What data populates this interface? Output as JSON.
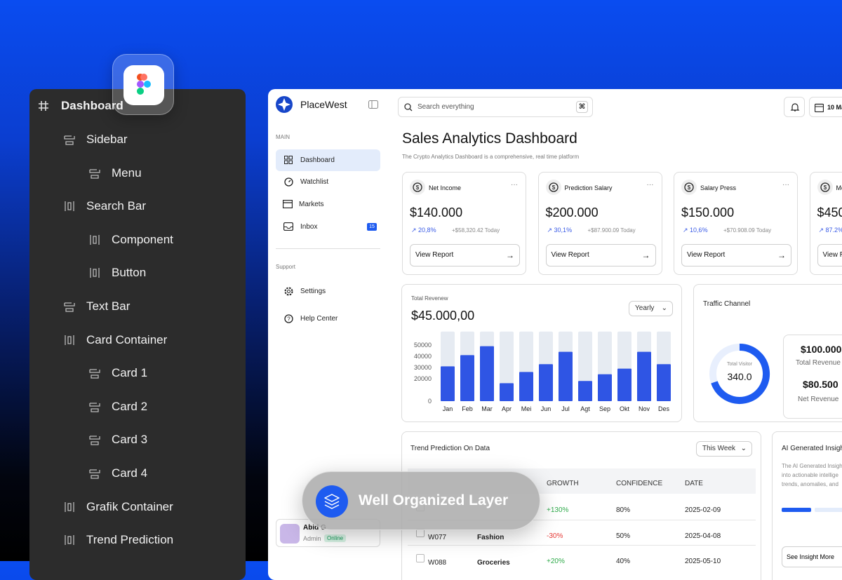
{
  "layers": {
    "root": "Dashboard",
    "items": [
      "Sidebar",
      "Menu",
      "Search Bar",
      "Component",
      "Button",
      "Text Bar",
      "Card Container",
      "Card 1",
      "Card 2",
      "Card 3",
      "Card 4",
      "Grafik Container",
      "Trend Prediction"
    ]
  },
  "badge": "Well Organized Layer",
  "app": {
    "brand": "PlaceWest",
    "search_placeholder": "Search everything",
    "date": "10 Ma",
    "main_section": "MAIN",
    "nav": [
      "Dashboard",
      "Watchlist",
      "Markets",
      "Inbox"
    ],
    "inbox_count": "15",
    "support_section": "Support",
    "support_nav": [
      "Settings",
      "Help Center"
    ],
    "user": {
      "name": "Abid G",
      "role": "Admin",
      "status": "Online"
    }
  },
  "header": {
    "title": "Sales Analytics Dashboard",
    "subtitle": "The Crypto Analytics Dashboard is a comprehensive, real time platform"
  },
  "cards": [
    {
      "label": "Net Income",
      "value": "$140.000",
      "change": "20,8%",
      "note": "+$58,320.42 Today",
      "button": "View Report"
    },
    {
      "label": "Prediction Salary",
      "value": "$200.000",
      "change": "30,1%",
      "note": "+$87.900.09 Today",
      "button": "View Report"
    },
    {
      "label": "Salary Press",
      "value": "$150.000",
      "change": "10,6%",
      "note": "+$70.908.09 Today",
      "button": "View Report"
    },
    {
      "label": "Mo",
      "value": "$450",
      "change": "87.2%",
      "button": "View R"
    }
  ],
  "chart_data": {
    "type": "bar",
    "title": "Total Revenew",
    "subtitle": "$45.000,00",
    "filter": "Yearly",
    "categories": [
      "Jan",
      "Feb",
      "Mar",
      "Apr",
      "Mei",
      "Jun",
      "Jul",
      "Agt",
      "Sep",
      "Okt",
      "Nov",
      "Des"
    ],
    "values": [
      31000,
      41000,
      49000,
      16000,
      26000,
      33000,
      44000,
      18000,
      24000,
      29000,
      44000,
      33000
    ],
    "color": "#2f55e4",
    "ylim": [
      0,
      62000
    ],
    "yticks": [
      0,
      20000,
      30000,
      40000,
      50000
    ],
    "grid": false
  },
  "traffic": {
    "title": "Traffic Channel",
    "center_label": "Total Visitor",
    "center_value": "340.0",
    "stats": [
      {
        "value": "$100.000",
        "label": "Total Revenue"
      },
      {
        "value": "$80.500",
        "label": "Net Revenue"
      }
    ]
  },
  "table": {
    "title": "Trend Prediction On Data",
    "filter": "This Week",
    "headers": [
      "GROWTH",
      "CONFIDENCE",
      "DATE"
    ],
    "rows": [
      {
        "growth": "+130%",
        "confidence": "80%",
        "date": "2025-02-09"
      },
      {
        "id": "W077",
        "category": "Fashion",
        "growth": "-30%",
        "confidence": "50%",
        "date": "2025-04-08"
      },
      {
        "id": "W088",
        "category": "Groceries",
        "growth": "+20%",
        "confidence": "40%",
        "date": "2025-05-10"
      }
    ]
  },
  "insight": {
    "title": "AI Generated Insigh",
    "lines": [
      "The AI Generated Insigh",
      "into actionable intellige",
      "trends, anomalies, and"
    ],
    "button": "See Insight More"
  }
}
